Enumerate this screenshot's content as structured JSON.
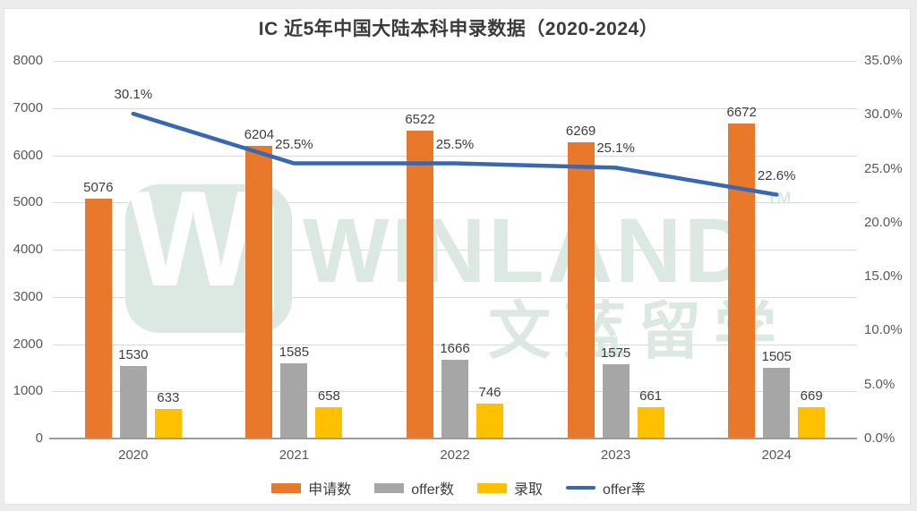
{
  "page": {
    "title": "IC 近5年中国大陆本科申录数据（2020-2024）",
    "background_color": "#ececec",
    "card_color": "#ffffff"
  },
  "watermark": {
    "brand": "WINLAND",
    "tm": "TM",
    "subtext": "文蓝留学",
    "color": "#dce8e2"
  },
  "chart_data": {
    "type": "bar",
    "subtype": "combo-bar-line",
    "title": "IC 近5年中国大陆本科申录数据（2020-2024）",
    "categories": [
      "2020",
      "2021",
      "2022",
      "2023",
      "2024"
    ],
    "series": [
      {
        "name": "申请数",
        "type": "bar",
        "color": "#E8792A",
        "values": [
          5076,
          6204,
          6522,
          6269,
          6672
        ]
      },
      {
        "name": "offer数",
        "type": "bar",
        "color": "#A6A6A6",
        "values": [
          1530,
          1585,
          1666,
          1575,
          1505
        ]
      },
      {
        "name": "录取",
        "type": "bar",
        "color": "#FFC000",
        "values": [
          633,
          658,
          746,
          661,
          669
        ]
      },
      {
        "name": "offer率",
        "type": "line",
        "color": "#3A67B2",
        "values": [
          30.1,
          25.5,
          25.5,
          25.1,
          22.6
        ],
        "point_labels": [
          "30.1%",
          "25.5%",
          "25.5%",
          "25.1%",
          "22.6%"
        ]
      }
    ],
    "left_axis": {
      "min": 0,
      "max": 8000,
      "step": 1000,
      "labels": [
        "8000",
        "7000",
        "6000",
        "5000",
        "4000",
        "3000",
        "2000",
        "1000",
        "0"
      ]
    },
    "right_axis": {
      "min": 0,
      "max": 35,
      "step": 5,
      "labels": [
        "35.0%",
        "30.0%",
        "25.0%",
        "20.0%",
        "15.0%",
        "10.0%",
        "5.0%",
        "0.0%"
      ]
    },
    "legend": [
      "申请数",
      "offer数",
      "录取",
      "offer率"
    ],
    "legend_position": "bottom",
    "grid": true
  }
}
